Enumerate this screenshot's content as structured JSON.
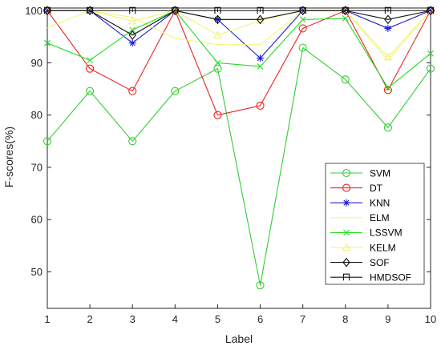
{
  "chart_data": {
    "type": "line",
    "title": "",
    "xlabel": "Label",
    "ylabel": "F-scores(%)",
    "x": [
      1,
      2,
      3,
      4,
      5,
      6,
      7,
      8,
      9,
      10
    ],
    "xlim": [
      1,
      10
    ],
    "ylim": [
      43,
      100.5
    ],
    "yticks": [
      50,
      60,
      70,
      80,
      90,
      100
    ],
    "grid": false,
    "legend_position": "bottom-right",
    "series": [
      {
        "name": "SVM",
        "color": "#33cc33",
        "marker": "circle",
        "values": [
          75.0,
          84.6,
          75.0,
          84.6,
          88.9,
          47.4,
          92.9,
          86.8,
          77.6,
          88.9
        ]
      },
      {
        "name": "DT",
        "color": "#ee2222",
        "marker": "circle",
        "values": [
          100,
          88.9,
          84.6,
          100,
          80.0,
          81.8,
          96.6,
          100,
          84.8,
          100
        ]
      },
      {
        "name": "KNN",
        "color": "#1c1cd6",
        "marker": "star",
        "values": [
          100,
          100,
          93.8,
          100,
          98.3,
          90.9,
          100,
          100,
          96.6,
          100
        ]
      },
      {
        "name": "ELM",
        "color": "#f5f57a",
        "marker": "none",
        "values": [
          96.7,
          100,
          98.7,
          94.7,
          93.5,
          93.5,
          100,
          100,
          90.5,
          100
        ]
      },
      {
        "name": "LSSVM",
        "color": "#22dd22",
        "marker": "x",
        "values": [
          93.8,
          90.5,
          96.3,
          100,
          90.0,
          89.3,
          98.3,
          98.5,
          85.2,
          91.8
        ]
      },
      {
        "name": "KELM",
        "color": "#f2f27a",
        "marker": "triangle",
        "values": [
          100,
          100,
          98.0,
          100,
          95.3,
          98.1,
          100,
          100,
          91.1,
          100
        ]
      },
      {
        "name": "SOF",
        "color": "#111111",
        "marker": "diamond",
        "values": [
          100,
          100,
          95.3,
          100,
          98.3,
          98.3,
          100,
          100,
          98.3,
          100
        ]
      },
      {
        "name": "HMDSOF",
        "color": "#111111",
        "marker": "hook",
        "values": [
          100,
          100,
          100,
          100,
          100,
          100,
          100,
          100,
          100,
          100
        ]
      }
    ]
  }
}
